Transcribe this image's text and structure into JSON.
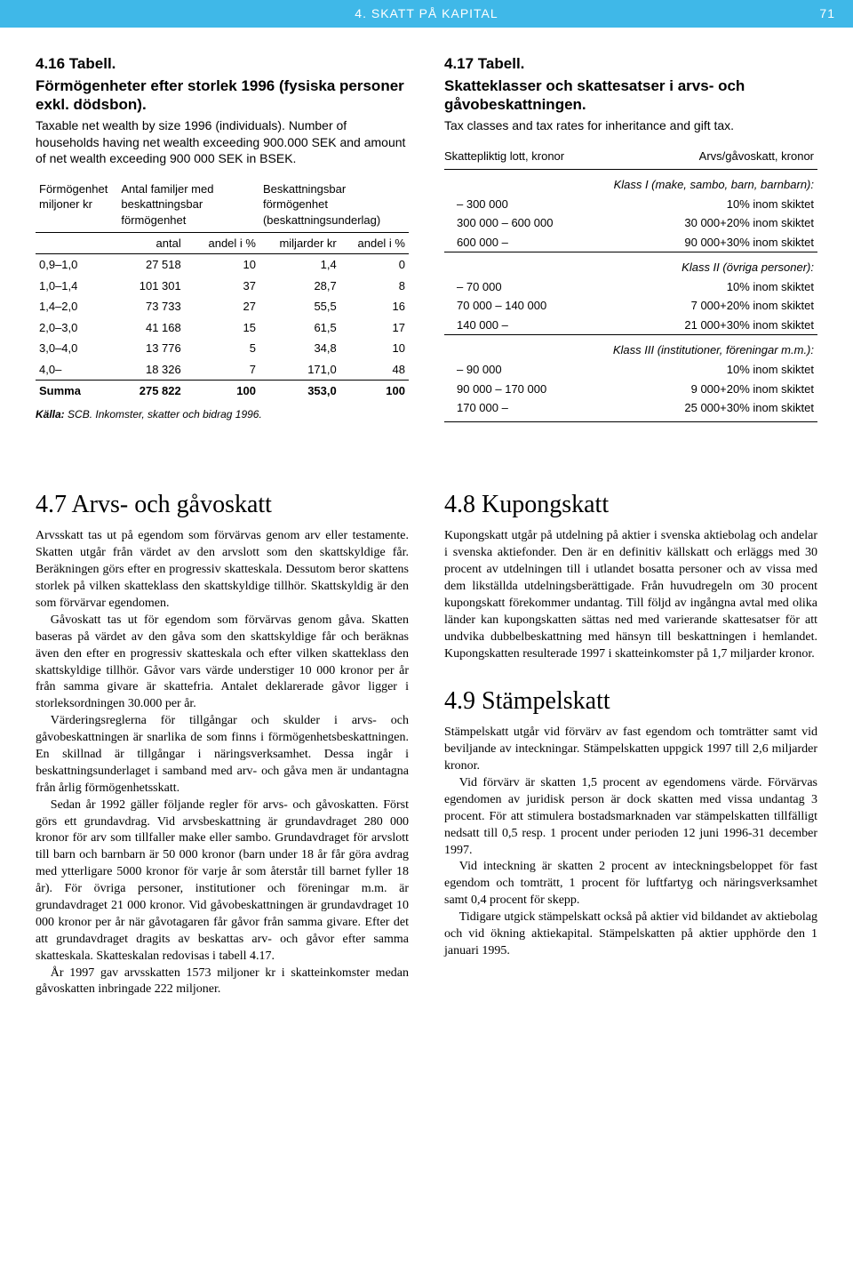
{
  "header": {
    "chapter": "4. SKATT PÅ KAPITAL",
    "page_number": "71"
  },
  "table416": {
    "title": "4.16 Tabell.",
    "subtitle_sv": "Förmögenheter efter storlek 1996 (fysiska personer exkl. dödsbon).",
    "subtitle_en": "Taxable net wealth by size 1996 (individuals). Number of households having net wealth exceeding 900.000 SEK and amount of net wealth exceeding 900 000 SEK in BSEK.",
    "col_headers": {
      "c1": "Förmögenhet miljoner kr",
      "c2": "Antal familjer med beskattningsbar förmögenhet",
      "c3": "Beskattningsbar förmögenhet (beskattningsunderlag)"
    },
    "sub_headers": {
      "s1": "antal",
      "s2": "andel i %",
      "s3": "miljarder kr",
      "s4": "andel i %"
    },
    "rows": [
      {
        "range": "0,9–1,0",
        "antal": "27 518",
        "andel1": "10",
        "mrd": "1,4",
        "andel2": "0"
      },
      {
        "range": "1,0–1,4",
        "antal": "101 301",
        "andel1": "37",
        "mrd": "28,7",
        "andel2": "8"
      },
      {
        "range": "1,4–2,0",
        "antal": "73 733",
        "andel1": "27",
        "mrd": "55,5",
        "andel2": "16"
      },
      {
        "range": "2,0–3,0",
        "antal": "41 168",
        "andel1": "15",
        "mrd": "61,5",
        "andel2": "17"
      },
      {
        "range": "3,0–4,0",
        "antal": "13 776",
        "andel1": "5",
        "mrd": "34,8",
        "andel2": "10"
      },
      {
        "range": "4,0–",
        "antal": "18 326",
        "andel1": "7",
        "mrd": "171,0",
        "andel2": "48"
      }
    ],
    "summa": {
      "label": "Summa",
      "antal": "275 822",
      "andel1": "100",
      "mrd": "353,0",
      "andel2": "100"
    },
    "source_label": "Källa:",
    "source_text": " SCB. Inkomster, skatter och bidrag 1996."
  },
  "table417": {
    "title": "4.17 Tabell.",
    "subtitle_sv": "Skatteklasser och skattesatser i arvs- och gåvobeskattningen.",
    "subtitle_en": "Tax classes and tax rates for inheritance and gift tax.",
    "header_left": "Skattepliktig lott, kronor",
    "header_right": "Arvs/gåvoskatt, kronor",
    "classes": [
      {
        "title": "Klass I (make, sambo, barn, barnbarn):",
        "rows": [
          {
            "range": "– 300 000",
            "rate": "10% inom skiktet"
          },
          {
            "range": "300 000 – 600 000",
            "rate": "30 000+20% inom skiktet"
          },
          {
            "range": "600 000 –",
            "rate": "90 000+30% inom skiktet"
          }
        ]
      },
      {
        "title": "Klass II (övriga personer):",
        "rows": [
          {
            "range": "– 70 000",
            "rate": "10% inom skiktet"
          },
          {
            "range": "70 000 – 140 000",
            "rate": "7 000+20% inom skiktet"
          },
          {
            "range": "140 000 –",
            "rate": "21 000+30% inom skiktet"
          }
        ]
      },
      {
        "title": "Klass III (institutioner, föreningar m.m.):",
        "rows": [
          {
            "range": "– 90 000",
            "rate": "10% inom skiktet"
          },
          {
            "range": "90 000 – 170 000",
            "rate": "9 000+20% inom skiktet"
          },
          {
            "range": "170 000 –",
            "rate": "25 000+30% inom skiktet"
          }
        ]
      }
    ]
  },
  "sections": {
    "s47": {
      "title": "4.7 Arvs- och gåvoskatt",
      "paras": [
        "Arvsskatt tas ut på egendom som förvärvas genom arv eller testamente. Skatten utgår från värdet av den arvslott som den skattskyldige får. Beräkningen görs efter en progressiv skatteskala. Dessutom beror skattens storlek på vilken skatteklass den skattskyldige tillhör. Skattskyldig är den som förvärvar egendomen.",
        "Gåvoskatt tas ut för egendom som förvärvas genom gåva. Skatten baseras på värdet av den gåva som den skattskyldige får och beräknas även den efter en progressiv skatteskala och efter vilken skatteklass den skattskyldige tillhör. Gåvor vars värde understiger 10 000 kronor per år från samma givare är skattefria. Antalet deklarerade gåvor ligger i storleksordningen 30.000 per år.",
        "Värderingsreglerna för tillgångar och skulder i arvs- och gåvobeskattningen är snarlika de som finns i förmögenhetsbeskattningen. En skillnad är tillgångar i näringsverksamhet. Dessa ingår i beskattningsunderlaget i samband med arv- och gåva men är undantagna från årlig förmögenhetsskatt.",
        "Sedan år 1992 gäller följande regler för arvs- och gåvoskatten. Först görs ett grundavdrag. Vid arvsbeskattning är grundavdraget 280 000 kronor för arv som tillfaller make eller sambo. Grundavdraget för arvslott till barn och barnbarn är 50 000 kronor (barn under 18 år får göra avdrag med ytterligare 5000 kronor för varje år som återstår till barnet fyller 18 år). För övriga personer, institutioner och föreningar m.m. är grundavdraget 21 000 kronor. Vid gåvobeskattningen är grundavdraget 10 000 kronor per år när gåvotagaren får gåvor från samma givare. Efter det att grundavdraget dragits av beskattas arv- och gåvor efter samma skatteskala. Skatteskalan redovisas i tabell 4.17.",
        "År 1997 gav arvsskatten 1573 miljoner kr i skatteinkomster medan gåvoskatten inbringade 222 miljoner."
      ]
    },
    "s48": {
      "title": "4.8 Kupongskatt",
      "paras": [
        "Kupongskatt utgår på utdelning på aktier i svenska aktiebolag och andelar i svenska aktiefonder. Den är en definitiv källskatt och erläggs med 30 procent av utdelningen till i utlandet bosatta personer och av vissa med dem likställda utdelningsberättigade. Från huvudregeln om 30 procent kupongskatt förekommer undantag. Till följd av ingångna avtal med olika länder kan kupongskatten sättas ned med varierande skattesatser för att undvika dubbelbeskattning med hänsyn till beskattningen i hemlandet. Kupongskatten resulterade 1997 i skatteinkomster på 1,7 miljarder kronor."
      ]
    },
    "s49": {
      "title": "4.9 Stämpelskatt",
      "paras": [
        "Stämpelskatt utgår vid förvärv av fast egendom och tomträtter samt vid beviljande av inteckningar. Stämpelskatten uppgick 1997 till 2,6 miljarder kronor.",
        "Vid förvärv är skatten 1,5 procent av egendomens värde. Förvärvas egendomen av juridisk person är dock skatten med vissa undantag 3 procent. För att stimulera bostadsmarknaden var stämpelskatten tillfälligt nedsatt till 0,5 resp. 1 procent under perioden 12 juni 1996-31 december 1997.",
        "Vid inteckning är skatten 2 procent av inteckningsbeloppet för fast egendom och tomträtt, 1 procent för luftfartyg och näringsverksamhet samt 0,4 procent för skepp.",
        "Tidigare utgick stämpelskatt också på aktier vid bildandet av aktiebolag och vid ökning aktiekapital. Stämpelskatten på aktier upphörde den 1 januari 1995."
      ]
    }
  }
}
